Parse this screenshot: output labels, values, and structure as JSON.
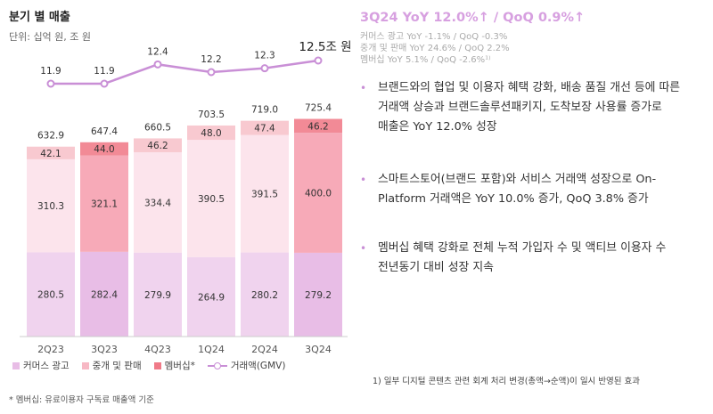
{
  "left_panel": {
    "title": "분기 별 매출",
    "unit": "단위: 십억 원, 조 원",
    "footnote": "* 멤버십: 유료이용자 구독료 매출액 기준"
  },
  "chart_data": {
    "type": "bar",
    "stacked": true,
    "categories": [
      "2Q23",
      "3Q23",
      "4Q23",
      "1Q24",
      "2Q24",
      "3Q24"
    ],
    "series": [
      {
        "name": "커머스 광고",
        "values": [
          280.5,
          282.4,
          279.9,
          264.9,
          280.2,
          279.2
        ]
      },
      {
        "name": "중개 및 판매",
        "values": [
          310.3,
          321.1,
          334.4,
          390.5,
          391.5,
          400.0
        ]
      },
      {
        "name": "멤버십*",
        "values": [
          42.1,
          44.0,
          46.2,
          48.0,
          47.4,
          46.2
        ]
      }
    ],
    "totals": [
      632.9,
      647.4,
      660.5,
      703.5,
      719.0,
      725.4
    ],
    "line_series": {
      "name": "거래액(GMV)",
      "values": [
        11.9,
        11.9,
        12.4,
        12.2,
        12.3,
        12.5
      ]
    },
    "line_value_labels": [
      "11.9",
      "11.9",
      "12.4",
      "12.2",
      "12.3",
      "12.5조 원"
    ],
    "bar_value_labels": {
      "커머스 광고": [
        "280.5",
        "282.4",
        "279.9",
        "264.9",
        "280.2",
        "279.2"
      ],
      "중개 및 판매": [
        "310.3",
        "321.1",
        "334.4",
        "390.5",
        "391.5",
        "400.0"
      ],
      "멤버십*": [
        "42.1",
        "44.0",
        "46.2",
        "48.0",
        "47.4",
        "46.2"
      ],
      "totals": [
        "632.9",
        "647.4",
        "660.5",
        "703.5",
        "719.0",
        "725.4"
      ]
    },
    "highlight_categories": [
      "3Q23",
      "3Q24"
    ],
    "legend_position": "bottom",
    "grid": false
  },
  "legend": {
    "ad": "커머스 광고",
    "brokerage": "중개 및 판매",
    "membership": "멤버십*",
    "gmv": "거래액(GMV)"
  },
  "colors": {
    "ad": "#f0d3ee",
    "ad_highlight": "#e8bde6",
    "brokerage": "#fce4ec",
    "brokerage_highlight": "#f7aab8",
    "membership": "#f8c9d0",
    "membership_highlight": "#f28a96",
    "gmv_line": "#c98fd6",
    "headline": "#d7a0e0"
  },
  "right_panel": {
    "headline": "3Q24 YoY 12.0%↑ / QoQ 0.9%↑",
    "sub_lines": [
      "커머스 광고 YoY -1.1% / QoQ -0.3%",
      "중개 및 판매 YoY 24.6% / QoQ 2.2%",
      "멤버십 YoY 5.1% / QoQ -2.6%¹⁾"
    ],
    "bullets": [
      [
        "브랜드와의 협업 및 이용자 혜택 강화, 배송 품질 개선 등에 따른",
        "거래액 상승과 브랜드솔루션패키지, 도착보장 사용률 증가로",
        "매출은 YoY 12.0% 성장"
      ],
      [
        "스마트스토어(브랜드 포함)와 서비스 거래액 성장으로 On-",
        "Platform 거래액은 YoY 10.0% 증가,  QoQ 3.8% 증가"
      ],
      [
        "멤버십 혜택 강화로 전체 누적 가입자 수 및 액티브 이용자 수",
        "전년동기 대비 성장 지속"
      ]
    ],
    "footnote": "1) 일부 디지털 콘텐츠 관련 회계 처리 변경(총액→순액)이 일시 반영된 효과"
  }
}
